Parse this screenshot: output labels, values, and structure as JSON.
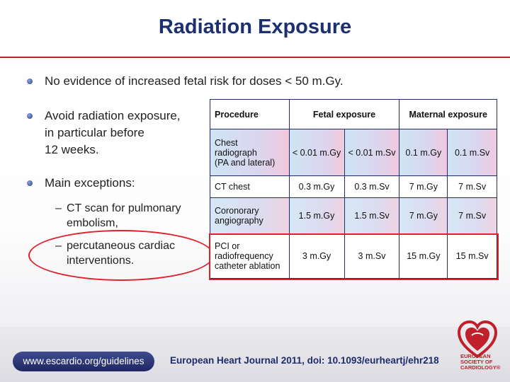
{
  "title": "Radiation Exposure",
  "bullets": [
    "No evidence of increased fetal risk for doses < 50 m.Gy.",
    "Avoid radiation exposure, in particular before 12 weeks.",
    "Main exceptions:"
  ],
  "bullet2_lines": [
    "Avoid radiation exposure,",
    "in particular before",
    "12 weeks."
  ],
  "sub_bullets": [
    {
      "dash": "–",
      "lines": [
        "CT scan for pulmonary",
        "embolism,"
      ]
    },
    {
      "dash": "–",
      "lines": [
        "percutaneous cardiac",
        "interventions."
      ]
    }
  ],
  "table": {
    "headers": [
      "Procedure",
      "Fetal exposure",
      "Maternal exposure"
    ],
    "rows": [
      {
        "procedure": [
          "Chest",
          "radiograph",
          "(PA and lateral)"
        ],
        "values": [
          "< 0.01 m.Gy",
          "< 0.01 m.Sv",
          "0.1 m.Gy",
          "0.1 m.Sv"
        ]
      },
      {
        "procedure": [
          "CT chest"
        ],
        "values": [
          "0.3 m.Gy",
          "0.3 m.Sv",
          "7 m.Gy",
          "7 m.Sv"
        ]
      },
      {
        "procedure": [
          "Coronorary",
          "angiography"
        ],
        "values": [
          "1.5 m.Gy",
          "1.5 m.Sv",
          "7 m.Gy",
          "7 m.Sv"
        ]
      },
      {
        "procedure": [
          "PCI or",
          "radiofrequency",
          "catheter ablation"
        ],
        "values": [
          "3 m.Gy",
          "3 m.Sv",
          "15 m.Gy",
          "15 m.Sv"
        ]
      }
    ]
  },
  "footer": {
    "url": "www.escardio.org/guidelines",
    "citation": "European Heart Journal 2011, doi: 10.1093/eurheartj/ehr218",
    "logo_text": [
      "EUROPEAN",
      "SOCIETY OF",
      "CARDIOLOGY®"
    ]
  },
  "colors": {
    "title": "#1c2f6e",
    "accent_red": "#e0202a",
    "table_border": "#1f2c6a"
  }
}
